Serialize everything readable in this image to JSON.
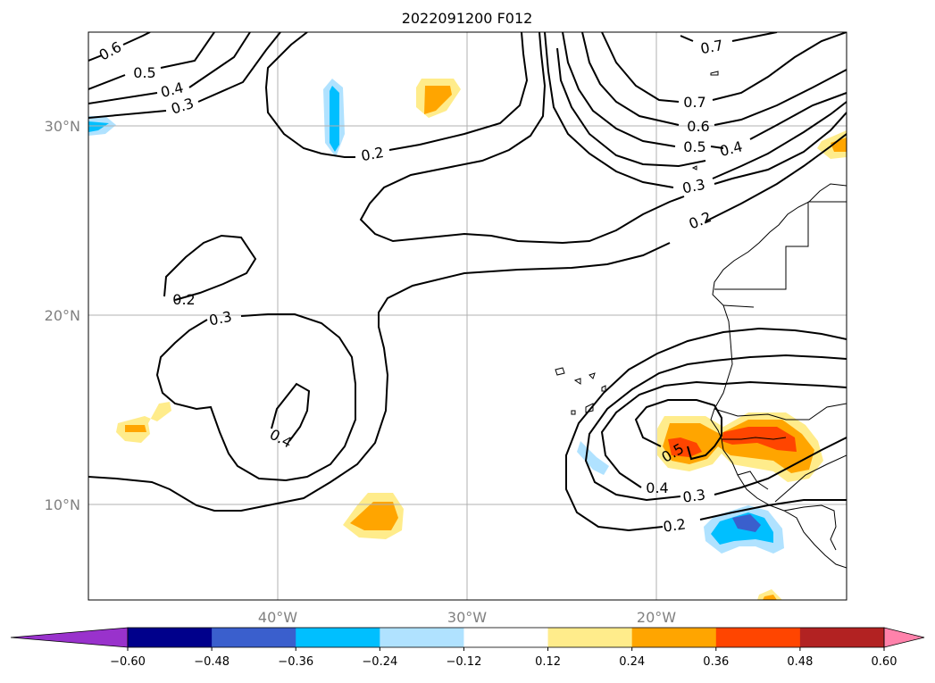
{
  "title": "2022091200 F012",
  "lat_labels": [
    "30°N",
    "20°N",
    "10°N"
  ],
  "lon_labels": [
    "40°W",
    "30°W",
    "20°W"
  ],
  "contour_labels": [
    "0.6",
    "0.5",
    "0.4",
    "0.3",
    "0.2",
    "0.2",
    "0.3",
    "0.4",
    "0.7",
    "0.7",
    "0.6",
    "0.5",
    "0.4",
    "0.3",
    "0.2",
    "0.5",
    "0.4",
    "0.3",
    "0.2"
  ],
  "colorbar": {
    "ticks": [
      "−0.60",
      "−0.48",
      "−0.36",
      "−0.24",
      "−0.12",
      "0.12",
      "0.24",
      "0.36",
      "0.48",
      "0.60"
    ],
    "colors": [
      "#9932cc",
      "#00008b",
      "#3a5fcd",
      "#00bfff",
      "#b0e2ff",
      "#ffffff",
      "#ffec8b",
      "#ffa500",
      "#ff4500",
      "#b22222",
      "#ff82ab"
    ]
  }
}
